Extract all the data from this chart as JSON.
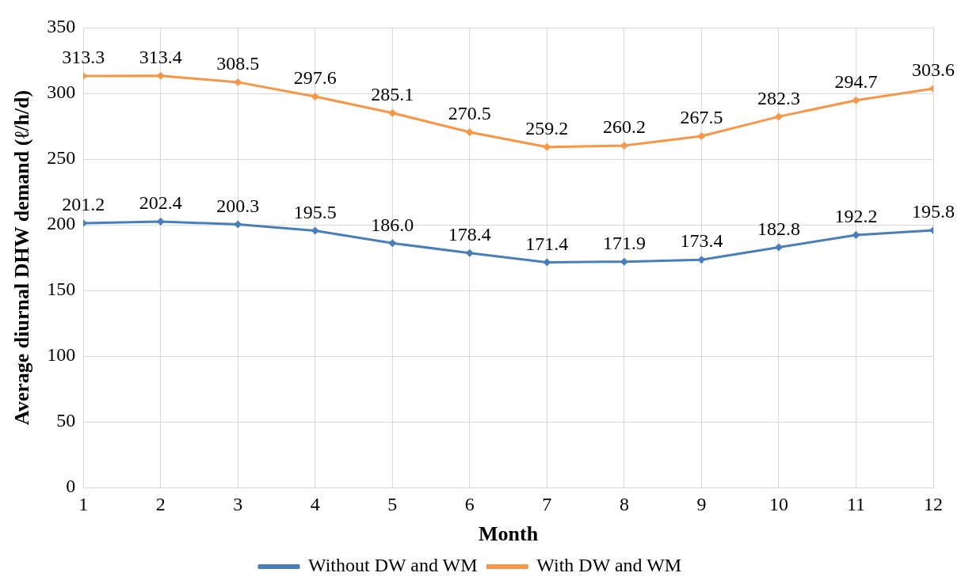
{
  "chart_data": {
    "type": "line",
    "xlabel": "Month",
    "ylabel": "Average diurnal DHW demand (ℓ/h/d)",
    "x": [
      1,
      2,
      3,
      4,
      5,
      6,
      7,
      8,
      9,
      10,
      11,
      12
    ],
    "xlim": [
      1,
      12
    ],
    "xticks": [
      1,
      2,
      3,
      4,
      5,
      6,
      7,
      8,
      9,
      10,
      11,
      12
    ],
    "series": [
      {
        "name": "Without DW and WM",
        "color": "#4a7ebb",
        "values": [
          201.2,
          202.4,
          200.3,
          195.5,
          186.0,
          178.4,
          171.4,
          171.9,
          173.4,
          182.8,
          192.2,
          195.8
        ],
        "value_labels": [
          "201.2",
          "202.4",
          "200.3",
          "195.5",
          "186.0",
          "178.4",
          "171.4",
          "171.9",
          "173.4",
          "182.8",
          "192.2",
          "195.8"
        ]
      },
      {
        "name": "With DW and WM",
        "color": "#f79646",
        "values": [
          313.3,
          313.4,
          308.5,
          297.6,
          285.1,
          270.5,
          259.2,
          260.2,
          267.5,
          282.3,
          294.7,
          303.6
        ],
        "value_labels": [
          "313.3",
          "313.4",
          "308.5",
          "297.6",
          "285.1",
          "270.5",
          "259.2",
          "260.2",
          "267.5",
          "282.3",
          "294.7",
          "303.6"
        ]
      }
    ],
    "ylim": [
      0,
      350
    ],
    "yticks": [
      0,
      50,
      100,
      150,
      200,
      250,
      300,
      350
    ],
    "grid": true,
    "legend": "bottom",
    "marker": "diamond",
    "line_style": "solid"
  }
}
